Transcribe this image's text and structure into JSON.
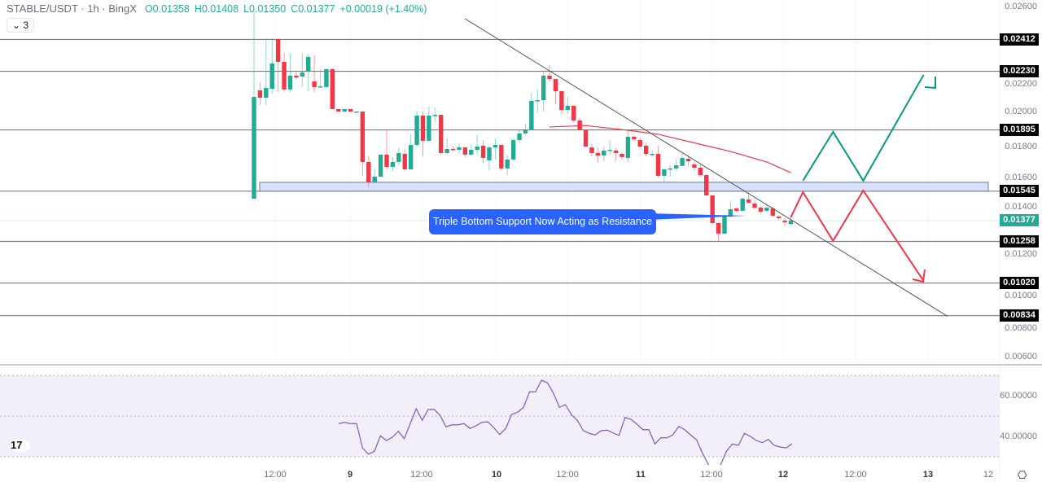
{
  "header": {
    "symbol": "STABLE/USDT · 1h · BingX",
    "open_key": "O",
    "open": "0.01358",
    "high_key": "H",
    "high": "0.01408",
    "low_key": "L",
    "low": "0.01350",
    "close_key": "C",
    "close": "0.01377",
    "change": "+0.00019 (+1.40%)",
    "indicators_toggle": "3"
  },
  "colors": {
    "up": "#22ab94",
    "down": "#f23645",
    "ma": "#f23645",
    "rsi": "#7e57c2",
    "callout": "#2962ff",
    "zone": "#d6e0fb",
    "bull_path": "#089981",
    "bear_path": "#f23645"
  },
  "price_axis": [
    "0.02600",
    "0.02200",
    "0.02000",
    "0.01800",
    "0.01600",
    "0.01400",
    "0.01200",
    "0.01000",
    "0.00800",
    "0.00600"
  ],
  "levels": [
    "0.02412",
    "0.02230",
    "0.01895",
    "0.01545",
    "0.01258",
    "0.01020",
    "0.00834"
  ],
  "current_price": "0.01377",
  "support_zone": [
    0.01545,
    0.01596
  ],
  "annotation": "Triple Bottom Support Now Acting as Resistance",
  "rsi_axis": [
    "60.00000",
    "40.00000"
  ],
  "time_axis": [
    {
      "label": "12:00",
      "day": false
    },
    {
      "label": "9",
      "day": true
    },
    {
      "label": "12:00",
      "day": false
    },
    {
      "label": "10",
      "day": true
    },
    {
      "label": "12:00",
      "day": false
    },
    {
      "label": "11",
      "day": true
    },
    {
      "label": "12:00",
      "day": false
    },
    {
      "label": "12",
      "day": true
    },
    {
      "label": "12:00",
      "day": false
    },
    {
      "label": "13",
      "day": true
    },
    {
      "label": "12",
      "day": false
    }
  ],
  "logo": "TV",
  "chart_data": {
    "type": "candlestick",
    "interval": "1h",
    "ylim": [
      0.006,
      0.026
    ],
    "candles_ohlc": [
      [
        0.01502,
        0.02567,
        0.01502,
        0.02084
      ],
      [
        0.02121,
        0.02167,
        0.02037,
        0.02079
      ],
      [
        0.02079,
        0.02419,
        0.02037,
        0.02135
      ],
      [
        0.0213,
        0.02419,
        0.02102,
        0.02275
      ],
      [
        0.02414,
        0.02419,
        0.02112,
        0.02284
      ],
      [
        0.02284,
        0.02335,
        0.02112,
        0.02126
      ],
      [
        0.02126,
        0.0233,
        0.02112,
        0.02205
      ],
      [
        0.02205,
        0.02228,
        0.02186,
        0.02195
      ],
      [
        0.022,
        0.0233,
        0.0214,
        0.02223
      ],
      [
        0.02228,
        0.0233,
        0.02116,
        0.02312
      ],
      [
        0.02172,
        0.02321,
        0.02112,
        0.0214
      ],
      [
        0.0214,
        0.02242,
        0.0214,
        0.02144
      ],
      [
        0.0214,
        0.02247,
        0.0214,
        0.02242
      ],
      [
        0.02242,
        0.02247,
        0.02014,
        0.02014
      ],
      [
        0.02014,
        0.02014,
        0.02,
        0.02
      ],
      [
        0.02,
        0.02014,
        0.02,
        0.02014
      ],
      [
        0.02014,
        0.02014,
        0.02,
        0.02
      ],
      [
        0.02,
        0.02,
        0.02,
        0.02
      ],
      [
        0.02,
        0.02,
        0.01633,
        0.01712
      ],
      [
        0.01712,
        0.01744,
        0.01568,
        0.01596
      ],
      [
        0.01596,
        0.0167,
        0.01596,
        0.01628
      ],
      [
        0.01628,
        0.01754,
        0.01628,
        0.01754
      ],
      [
        0.01754,
        0.01893,
        0.01675,
        0.01684
      ],
      [
        0.01684,
        0.0174,
        0.01661,
        0.01712
      ],
      [
        0.01712,
        0.01795,
        0.01693,
        0.01763
      ],
      [
        0.01758,
        0.01786,
        0.01661,
        0.0167
      ],
      [
        0.0167,
        0.0187,
        0.0167,
        0.01809
      ],
      [
        0.01809,
        0.02005,
        0.018,
        0.01977
      ],
      [
        0.01977,
        0.02,
        0.01744,
        0.01833
      ],
      [
        0.01833,
        0.02028,
        0.01833,
        0.01977
      ],
      [
        0.01977,
        0.02023,
        0.0194,
        0.01981
      ],
      [
        0.01981,
        0.01981,
        0.01754,
        0.01763
      ],
      [
        0.01763,
        0.01847,
        0.01754,
        0.01786
      ],
      [
        0.01786,
        0.018,
        0.01777,
        0.01781
      ],
      [
        0.01781,
        0.01819,
        0.01754,
        0.01795
      ],
      [
        0.01795,
        0.01795,
        0.0174,
        0.01754
      ],
      [
        0.01754,
        0.01809,
        0.01744,
        0.01781
      ],
      [
        0.01781,
        0.01865,
        0.01754,
        0.018
      ],
      [
        0.01805,
        0.01837,
        0.01707,
        0.01735
      ],
      [
        0.01721,
        0.01805,
        0.01665,
        0.01795
      ],
      [
        0.01795,
        0.01847,
        0.01726,
        0.01809
      ],
      [
        0.01809,
        0.01809,
        0.01661,
        0.01675
      ],
      [
        0.01675,
        0.01754,
        0.01637,
        0.01726
      ],
      [
        0.01726,
        0.01847,
        0.01716,
        0.01837
      ],
      [
        0.01837,
        0.01893,
        0.01823,
        0.01875
      ],
      [
        0.01875,
        0.0193,
        0.01865,
        0.01893
      ],
      [
        0.01893,
        0.02107,
        0.01893,
        0.02061
      ],
      [
        0.02061,
        0.02126,
        0.01995,
        0.02065
      ],
      [
        0.02065,
        0.02228,
        0.02,
        0.02205
      ],
      [
        0.02205,
        0.02265,
        0.02172,
        0.02186
      ],
      [
        0.02186,
        0.02186,
        0.02042,
        0.02116
      ],
      [
        0.02116,
        0.02116,
        0.01986,
        0.02009
      ],
      [
        0.02009,
        0.02084,
        0.01986,
        0.02033
      ],
      [
        0.02033,
        0.02033,
        0.0194,
        0.01949
      ],
      [
        0.01949,
        0.01963,
        0.01893,
        0.01893
      ],
      [
        0.01893,
        0.01893,
        0.01795,
        0.018
      ],
      [
        0.01795,
        0.01814,
        0.01744,
        0.01763
      ],
      [
        0.01763,
        0.01791,
        0.01707,
        0.01749
      ],
      [
        0.01749,
        0.018,
        0.01716,
        0.01777
      ],
      [
        0.01777,
        0.01837,
        0.01754,
        0.01781
      ],
      [
        0.01777,
        0.01791,
        0.01721,
        0.01763
      ],
      [
        0.01758,
        0.01768,
        0.01726,
        0.0174
      ],
      [
        0.01735,
        0.01893,
        0.01712,
        0.01856
      ],
      [
        0.01856,
        0.01865,
        0.01837,
        0.01842
      ],
      [
        0.01837,
        0.01847,
        0.01791,
        0.018
      ],
      [
        0.01805,
        0.01823,
        0.01744,
        0.01758
      ],
      [
        0.01758,
        0.01781,
        0.0174,
        0.01758
      ],
      [
        0.01758,
        0.01805,
        0.01623,
        0.01633
      ],
      [
        0.01633,
        0.01675,
        0.01596,
        0.0167
      ],
      [
        0.0167,
        0.01693,
        0.01628,
        0.01675
      ],
      [
        0.01675,
        0.0173,
        0.01661,
        0.01693
      ],
      [
        0.01689,
        0.01763,
        0.01689,
        0.01735
      ],
      [
        0.0173,
        0.01754,
        0.01684,
        0.01716
      ],
      [
        0.01698,
        0.01716,
        0.01661,
        0.01679
      ],
      [
        0.01679,
        0.01698,
        0.01628,
        0.01637
      ],
      [
        0.01637,
        0.01642,
        0.01517,
        0.01521
      ],
      [
        0.01521,
        0.01521,
        0.01354,
        0.01363
      ],
      [
        0.01363,
        0.01363,
        0.01261,
        0.01303
      ],
      [
        0.01303,
        0.01405,
        0.01303,
        0.014
      ],
      [
        0.014,
        0.01489,
        0.01391,
        0.01442
      ],
      [
        0.01447,
        0.01451,
        0.01424,
        0.01433
      ],
      [
        0.01433,
        0.01512,
        0.01433,
        0.01502
      ],
      [
        0.01498,
        0.0154,
        0.01474,
        0.01479
      ],
      [
        0.01474,
        0.01493,
        0.01442,
        0.01451
      ],
      [
        0.01451,
        0.0146,
        0.01419,
        0.01428
      ],
      [
        0.01433,
        0.01474,
        0.01428,
        0.01451
      ],
      [
        0.01447,
        0.01456,
        0.014,
        0.01405
      ],
      [
        0.014,
        0.01405,
        0.01382,
        0.01391
      ],
      [
        0.01377,
        0.01396,
        0.01345,
        0.01368
      ],
      [
        0.01358,
        0.01408,
        0.0135,
        0.01377
      ]
    ],
    "moving_average": [
      [
        49,
        0.01912
      ],
      [
        55,
        0.0192
      ],
      [
        62,
        0.01893
      ],
      [
        67,
        0.0187
      ],
      [
        73,
        0.01821
      ],
      [
        79,
        0.01772
      ],
      [
        85,
        0.01712
      ],
      [
        89,
        0.01651
      ]
    ],
    "trendline": [
      [
        35,
        0.0253
      ],
      [
        115,
        0.0083
      ]
    ],
    "bull_projection": [
      [
        91,
        0.01605
      ],
      [
        96,
        0.01884
      ],
      [
        101,
        0.01605
      ],
      [
        111,
        0.02209
      ]
    ],
    "bear_projection": [
      [
        89,
        0.01396
      ],
      [
        91,
        0.0154
      ],
      [
        96,
        0.01261
      ],
      [
        101,
        0.01549
      ],
      [
        111,
        0.01033
      ]
    ],
    "rsi": {
      "ylim": [
        20,
        80
      ],
      "bands": [
        30,
        50,
        70
      ],
      "values": [
        46.3,
        46.9,
        46.3,
        46.3,
        34.3,
        31.3,
        32.7,
        40.3,
        38,
        39.6,
        42.5,
        38.9,
        46.3,
        53.6,
        47.9,
        53.2,
        53.3,
        50.3,
        44.7,
        45.7,
        45.7,
        46.3,
        43.9,
        45.2,
        46.9,
        47.2,
        44.3,
        40.9,
        43.9,
        50.8,
        51.9,
        54.3,
        61.9,
        61.9,
        67.6,
        66.3,
        61.2,
        54.3,
        55.6,
        50.7,
        47.9,
        42.9,
        41.5,
        40.7,
        42.8,
        43.1,
        41.7,
        40.5,
        49.3,
        48.4,
        46,
        43.3,
        43.3,
        36.3,
        39.3,
        39.3,
        40.7,
        44.9,
        43.3,
        40.7,
        38.3,
        31.6,
        26,
        24,
        26,
        32.7,
        36.3,
        35.6,
        41.5,
        40,
        38,
        36.9,
        38.5,
        35.6,
        34.8,
        34.3,
        36.4
      ]
    }
  }
}
